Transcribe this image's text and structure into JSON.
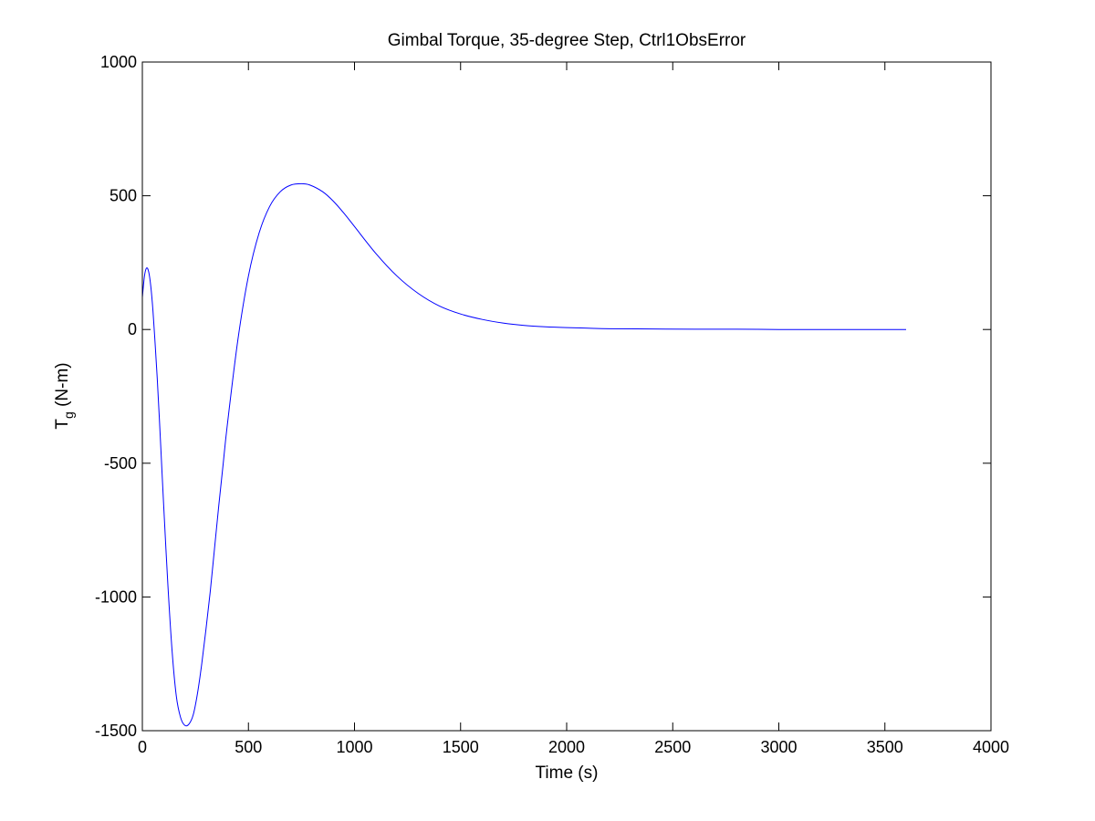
{
  "chart_data": {
    "type": "line",
    "title": "Gimbal Torque, 35-degree Step, Ctrl1ObsError",
    "xlabel": "Time (s)",
    "ylabel_main": "T",
    "ylabel_subscript": "g",
    "ylabel_units": " (N-m)",
    "xlim": [
      0,
      4000
    ],
    "ylim": [
      -1500,
      1000
    ],
    "xticks": [
      0,
      500,
      1000,
      1500,
      2000,
      2500,
      3000,
      3500,
      4000
    ],
    "yticks": [
      -1500,
      -1000,
      -500,
      0,
      500,
      1000
    ],
    "grid": false,
    "series": [
      {
        "color": "#0000ff",
        "x": [
          0,
          10,
          20,
          30,
          40,
          50,
          60,
          70,
          80,
          90,
          100,
          120,
          140,
          160,
          180,
          200,
          220,
          240,
          260,
          280,
          300,
          320,
          340,
          360,
          380,
          400,
          450,
          500,
          550,
          600,
          650,
          700,
          750,
          790,
          850,
          900,
          950,
          1000,
          1100,
          1200,
          1300,
          1400,
          1500,
          1600,
          1700,
          1800,
          1900,
          2000,
          2100,
          2200,
          2400,
          2600,
          2800,
          3000,
          3200,
          3400,
          3600
        ],
        "y": [
          120,
          200,
          230,
          215,
          160,
          70,
          -50,
          -180,
          -330,
          -490,
          -650,
          -950,
          -1200,
          -1370,
          -1450,
          -1480,
          -1475,
          -1440,
          -1360,
          -1250,
          -1120,
          -980,
          -820,
          -660,
          -510,
          -360,
          -40,
          200,
          360,
          460,
          515,
          540,
          545,
          540,
          515,
          480,
          435,
          385,
          285,
          200,
          135,
          88,
          58,
          38,
          24,
          15,
          10,
          7,
          5,
          3,
          2,
          1,
          1,
          0,
          0,
          0,
          0
        ]
      }
    ]
  }
}
